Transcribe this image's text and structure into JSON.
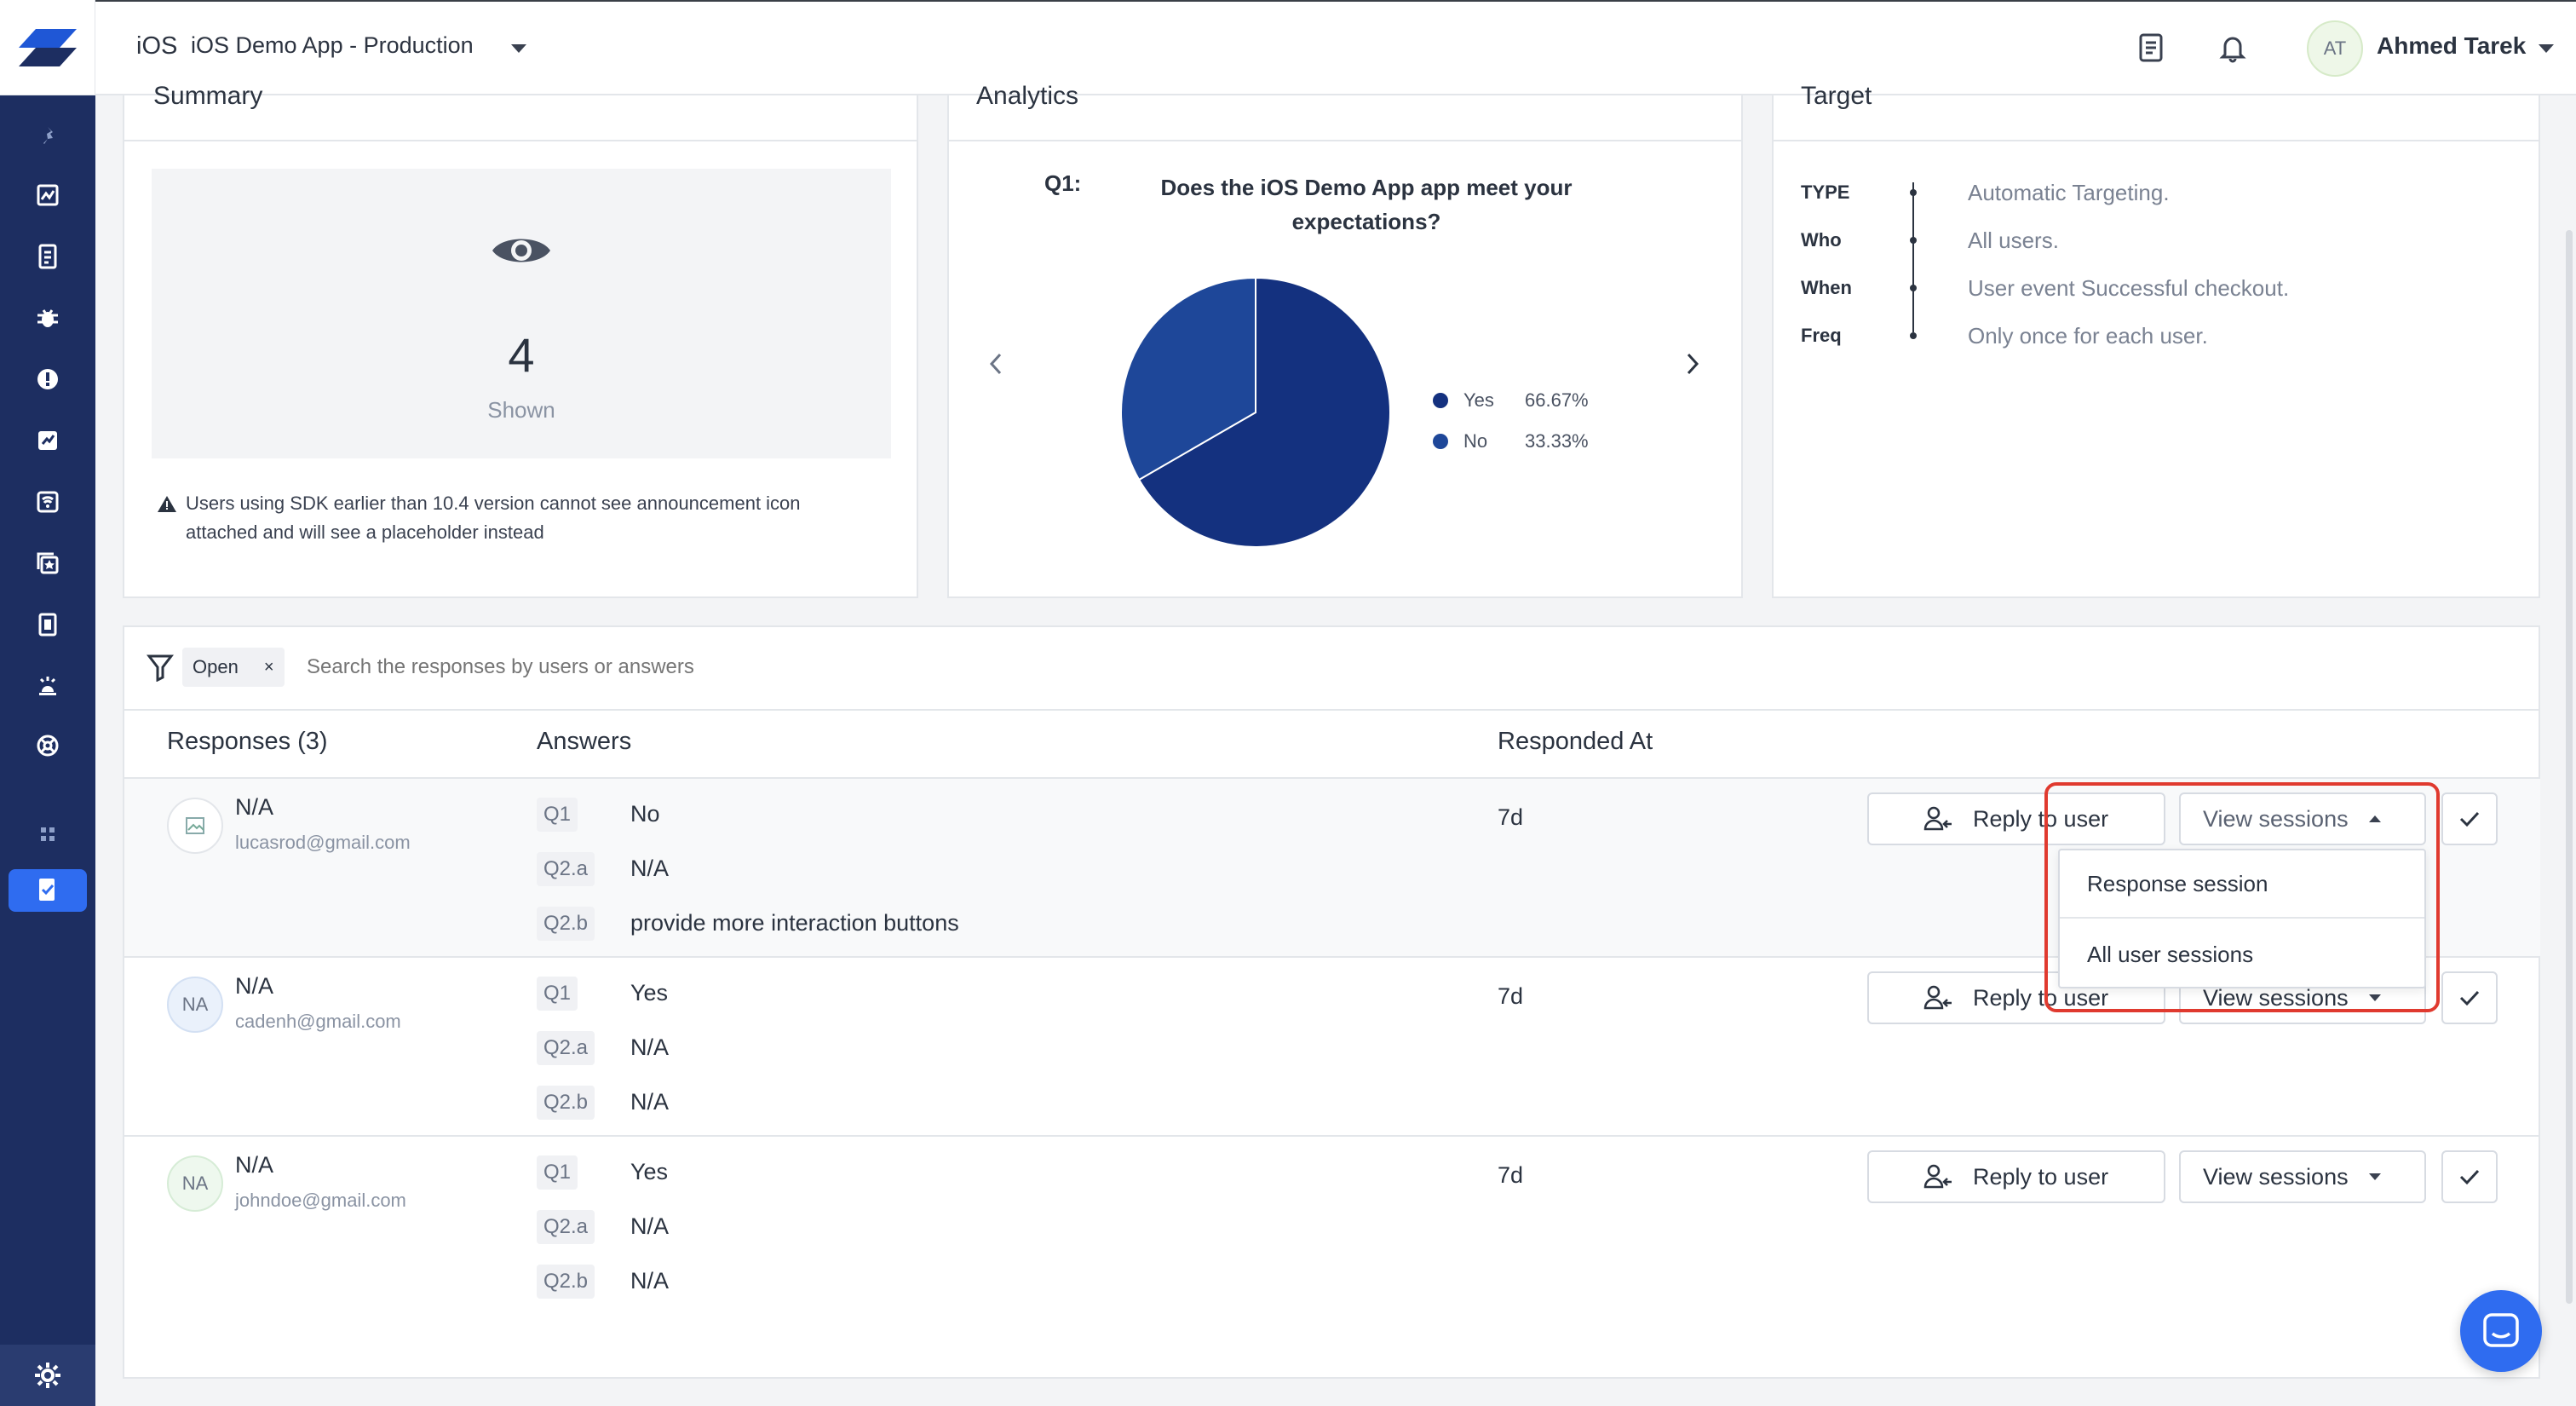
{
  "header": {
    "os": "iOS",
    "app_name": "iOS Demo App - Production",
    "user_initials": "AT",
    "user_name": "Ahmed Tarek"
  },
  "sidebar": {
    "icons": [
      "pin-icon",
      "dashboard-icon",
      "reports-icon",
      "bugs-icon",
      "crashes-icon",
      "app-performance-icon",
      "network-icon",
      "feature-requests-icon",
      "surveys-icon",
      "alerts-icon",
      "integrations-icon",
      "more-icon",
      "announcements-icon",
      "settings-icon"
    ]
  },
  "summary": {
    "title": "Summary",
    "shown_count": "4",
    "shown_label": "Shown",
    "warning": "Users using SDK earlier than 10.4 version cannot see announcement icon attached and will see a placeholder instead"
  },
  "analytics": {
    "title": "Analytics",
    "question_label": "Q1:",
    "question_text": "Does the iOS Demo App app meet your expectations?",
    "legend": [
      {
        "label": "Yes",
        "value": "66.67%",
        "color": "#14317f"
      },
      {
        "label": "No",
        "value": "33.33%",
        "color": "#1e4799"
      }
    ]
  },
  "chart_data": {
    "type": "pie",
    "categories": [
      "Yes",
      "No"
    ],
    "values": [
      66.67,
      33.33
    ],
    "colors": [
      "#14317f",
      "#1e4799"
    ]
  },
  "target": {
    "title": "Target",
    "rows": [
      {
        "key": "TYPE",
        "value": "Automatic Targeting."
      },
      {
        "key": "Who",
        "value": "All users."
      },
      {
        "key": "When",
        "value": "User event Successful checkout."
      },
      {
        "key": "Freq",
        "value": "Only once for each user."
      }
    ]
  },
  "filters": {
    "chip_label": "Open",
    "chip_close": "×",
    "search_placeholder": "Search the responses by users or answers"
  },
  "table": {
    "col_responses": "Responses (3)",
    "col_answers": "Answers",
    "col_responded": "Responded At",
    "reply_label": "Reply to user",
    "view_label": "View sessions",
    "rows": [
      {
        "name": "N/A",
        "email": "lucasrod@gmail.com",
        "initials": "",
        "answers": [
          {
            "q": "Q1",
            "a": "No"
          },
          {
            "q": "Q2.a",
            "a": "N/A"
          },
          {
            "q": "Q2.b",
            "a": "provide more interaction buttons"
          }
        ],
        "time": "7d"
      },
      {
        "name": "N/A",
        "email": "cadenh@gmail.com",
        "initials": "NA",
        "answers": [
          {
            "q": "Q1",
            "a": "Yes"
          },
          {
            "q": "Q2.a",
            "a": "N/A"
          },
          {
            "q": "Q2.b",
            "a": "N/A"
          }
        ],
        "time": "7d"
      },
      {
        "name": "N/A",
        "email": "johndoe@gmail.com",
        "initials": "NA",
        "answers": [
          {
            "q": "Q1",
            "a": "Yes"
          },
          {
            "q": "Q2.a",
            "a": "N/A"
          },
          {
            "q": "Q2.b",
            "a": "N/A"
          }
        ],
        "time": "7d"
      }
    ]
  },
  "dropdown": {
    "items": [
      "Response session",
      "All user sessions"
    ]
  },
  "highlight_color": "#e03a2f"
}
